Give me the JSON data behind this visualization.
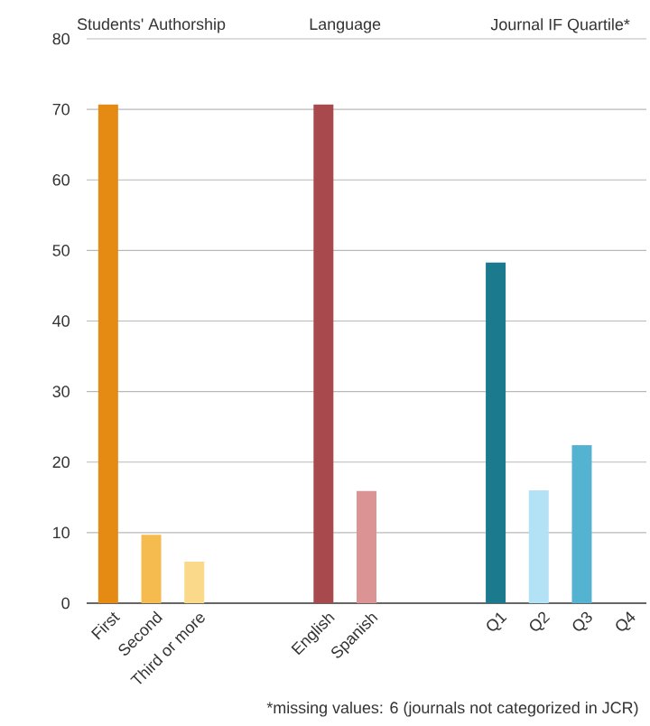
{
  "chart_data": {
    "type": "bar",
    "categories": [
      "First",
      "Second",
      "Third or more",
      null,
      null,
      "English",
      "Spanish",
      null,
      null,
      "Q1",
      "Q2",
      "Q3",
      "Q4"
    ],
    "values": [
      70.7,
      9.7,
      5.9,
      null,
      null,
      70.7,
      15.9,
      null,
      null,
      48.3,
      16,
      22.4,
      0
    ],
    "colors": [
      "#e58a12",
      "#f5bb4e",
      "#fbd98a",
      null,
      null,
      "#a84a4d",
      "#dc9394",
      null,
      null,
      "#1b7a8e",
      "#b3e2f6",
      "#55b3d2",
      "#55b3d2"
    ],
    "ylim": [
      0,
      80
    ],
    "yticks": [
      0,
      10,
      20,
      30,
      40,
      50,
      60,
      70,
      80
    ],
    "grid": "y",
    "annotations": [
      "Students' Authorship",
      "Language",
      "Journal IF Quartile*",
      "*missing values: 6 (journals not categorized in JCR)"
    ]
  }
}
